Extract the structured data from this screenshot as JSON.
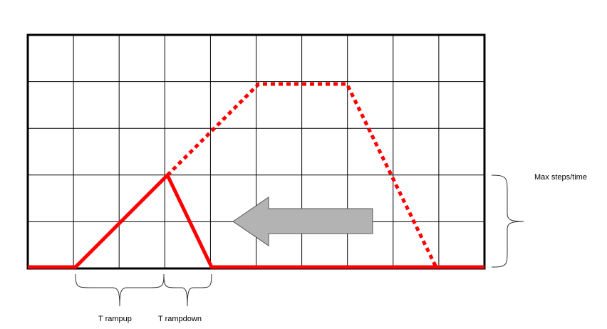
{
  "labels": {
    "max_steps": "Max steps/time",
    "t_rampup": "T rampup",
    "t_rampdown": "T rampdown"
  },
  "colors": {
    "profile": "#ff0000",
    "arrow_fill": "#b3b3b3",
    "grid": "#000000"
  },
  "grid": {
    "columns": 10,
    "rows": 5
  }
}
